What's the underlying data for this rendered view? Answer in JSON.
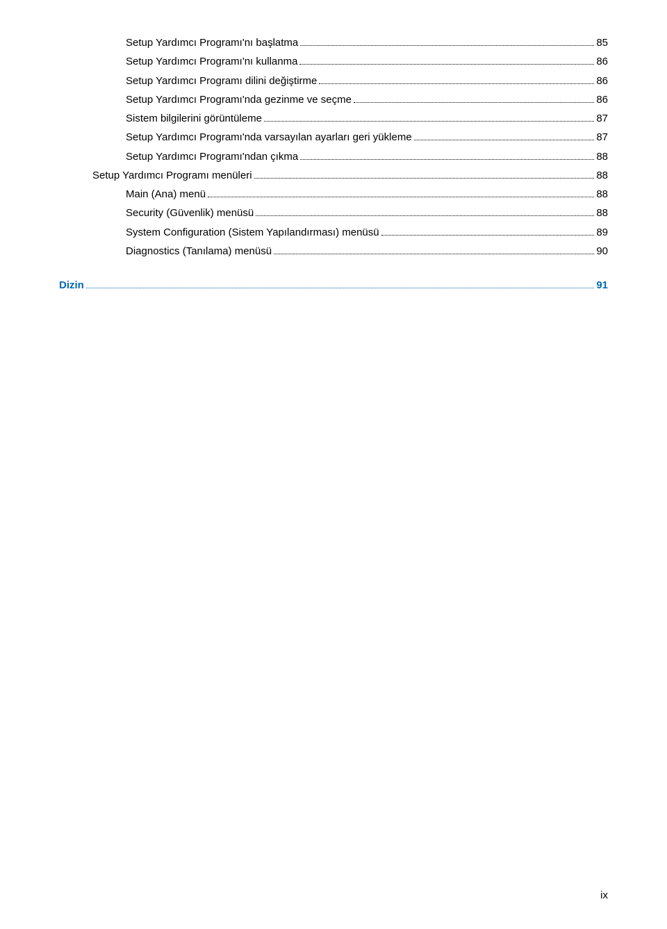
{
  "toc": {
    "entries": [
      {
        "level": 2,
        "title": "Setup Yardımcı Programı'nı başlatma",
        "page": "85"
      },
      {
        "level": 2,
        "title": "Setup Yardımcı Programı'nı kullanma",
        "page": "86"
      },
      {
        "level": 2,
        "title": "Setup Yardımcı Programı dilini değiştirme",
        "page": "86"
      },
      {
        "level": 2,
        "title": "Setup Yardımcı Programı'nda gezinme ve seçme",
        "page": "86"
      },
      {
        "level": 2,
        "title": "Sistem bilgilerini görüntüleme",
        "page": "87"
      },
      {
        "level": 2,
        "title": "Setup Yardımcı Programı'nda varsayılan ayarları geri yükleme",
        "page": "87"
      },
      {
        "level": 2,
        "title": "Setup Yardımcı Programı'ndan çıkma",
        "page": "88"
      },
      {
        "level": 1,
        "title": "Setup Yardımcı Programı menüleri",
        "page": "88"
      },
      {
        "level": 2,
        "title": "Main (Ana) menü",
        "page": "88"
      },
      {
        "level": 2,
        "title": "Security (Güvenlik) menüsü",
        "page": "88"
      },
      {
        "level": 2,
        "title": "System Configuration (Sistem Yapılandırması) menüsü",
        "page": "89"
      },
      {
        "level": 2,
        "title": "Diagnostics (Tanılama) menüsü",
        "page": "90"
      }
    ]
  },
  "dizin": {
    "title": "Dizin",
    "page": "91"
  },
  "pageNumber": "ix",
  "colors": {
    "text": "#000000",
    "link": "#0068b4",
    "background": "#ffffff"
  }
}
